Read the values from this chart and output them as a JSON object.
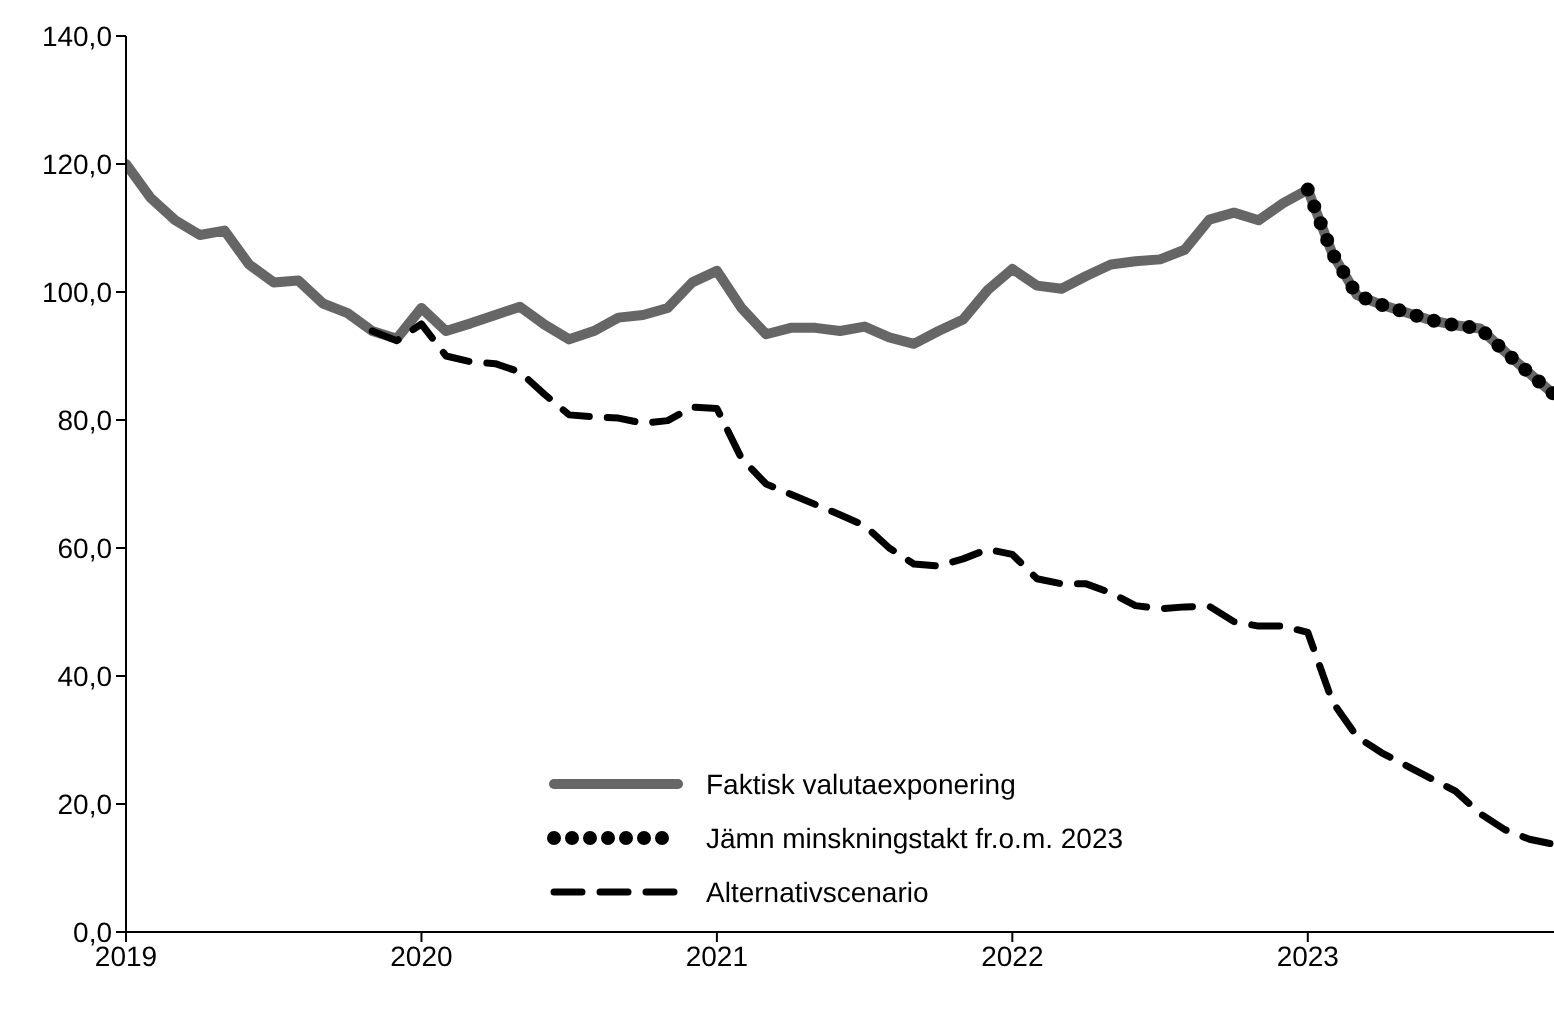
{
  "chart_data": {
    "type": "line",
    "xlim": [
      "2019-01",
      "2023-11"
    ],
    "xticks": [
      "2019",
      "2020",
      "2021",
      "2022",
      "2023"
    ],
    "ylim": [
      0,
      140
    ],
    "yticks": [
      {
        "value": 0,
        "label": "0,0"
      },
      {
        "value": 20,
        "label": "20,0"
      },
      {
        "value": 40,
        "label": "40,0"
      },
      {
        "value": 60,
        "label": "60,0"
      },
      {
        "value": 80,
        "label": "80,0"
      },
      {
        "value": 100,
        "label": "100,0"
      },
      {
        "value": 120,
        "label": "120,0"
      },
      {
        "value": 140,
        "label": "140,0"
      }
    ],
    "grid": false,
    "legend": "bottom",
    "marker": "none",
    "series": [
      {
        "name": "Faktisk valutaexponering",
        "color": "#666666",
        "line_style": "solid",
        "x": [
          "2019-01",
          "2019-02",
          "2019-03",
          "2019-04",
          "2019-05",
          "2019-06",
          "2019-07",
          "2019-08",
          "2019-09",
          "2019-10",
          "2019-11",
          "2019-12",
          "2020-01",
          "2020-02",
          "2020-03",
          "2020-04",
          "2020-05",
          "2020-06",
          "2020-07",
          "2020-08",
          "2020-09",
          "2020-10",
          "2020-11",
          "2020-12",
          "2021-01",
          "2021-02",
          "2021-03",
          "2021-04",
          "2021-05",
          "2021-06",
          "2021-07",
          "2021-08",
          "2021-09",
          "2021-10",
          "2021-11",
          "2021-12",
          "2022-01",
          "2022-02",
          "2022-03",
          "2022-04",
          "2022-05",
          "2022-06",
          "2022-07",
          "2022-08",
          "2022-09",
          "2022-10",
          "2022-11",
          "2022-12",
          "2023-01",
          "2023-02",
          "2023-03",
          "2023-04",
          "2023-05",
          "2023-06",
          "2023-07",
          "2023-08",
          "2023-09",
          "2023-10",
          "2023-11"
        ],
        "values": [
          120,
          114.7,
          111.2,
          108.9,
          109.6,
          104.3,
          101.5,
          101.8,
          98.2,
          96.7,
          93.9,
          92.7,
          97.5,
          93.9,
          95.1,
          96.4,
          97.7,
          94.9,
          92.6,
          93.9,
          96,
          96.4,
          97.5,
          101.5,
          103.3,
          97.5,
          93.4,
          94.4,
          94.4,
          93.9,
          94.6,
          92.9,
          91.9,
          93.9,
          95.7,
          100.3,
          103.6,
          101,
          100.5,
          102.5,
          104.3,
          104.8,
          105.1,
          106.6,
          111.3,
          112.4,
          111.2,
          113.9,
          116,
          106,
          99.5,
          98,
          96.8,
          95.6,
          94.8,
          94.3,
          90.7,
          87.3,
          84
        ]
      },
      {
        "name": "Jämn minskningstakt fr.o.m. 2023",
        "color": "#000000",
        "line_style": "dotted",
        "x": [
          "2023-01",
          "2023-02",
          "2023-03",
          "2023-04",
          "2023-05",
          "2023-06",
          "2023-07",
          "2023-08",
          "2023-09",
          "2023-10",
          "2023-11"
        ],
        "values": [
          116,
          106,
          99.5,
          98,
          96.8,
          95.6,
          94.8,
          94.3,
          90.7,
          87.3,
          84
        ]
      },
      {
        "name": "Alternativscenario",
        "color": "#000000",
        "line_style": "dashed",
        "x": [
          "2019-11",
          "2019-12",
          "2020-01",
          "2020-02",
          "2020-03",
          "2020-04",
          "2020-05",
          "2020-06",
          "2020-07",
          "2020-08",
          "2020-09",
          "2020-10",
          "2020-11",
          "2020-12",
          "2021-01",
          "2021-02",
          "2021-03",
          "2021-04",
          "2021-05",
          "2021-06",
          "2021-07",
          "2021-08",
          "2021-09",
          "2021-10",
          "2021-11",
          "2021-12",
          "2022-01",
          "2022-02",
          "2022-03",
          "2022-04",
          "2022-05",
          "2022-06",
          "2022-07",
          "2022-08",
          "2022-09",
          "2022-10",
          "2022-11",
          "2022-12",
          "2023-01",
          "2023-02",
          "2023-03",
          "2023-04",
          "2023-05",
          "2023-06",
          "2023-07",
          "2023-08",
          "2023-09",
          "2023-10",
          "2023-11"
        ],
        "values": [
          93.9,
          92.4,
          95,
          90,
          89.1,
          88.8,
          87.5,
          84,
          80.8,
          80.5,
          80.3,
          79.5,
          79.9,
          82,
          81.8,
          74,
          70,
          68.4,
          66.8,
          65.2,
          63.5,
          60,
          57.5,
          57.2,
          58.3,
          59.8,
          59,
          55.2,
          54.4,
          54.4,
          53,
          51,
          50.5,
          50.8,
          50.9,
          48.5,
          47.8,
          47.8,
          46.8,
          36,
          30.5,
          28,
          26,
          24,
          22,
          18.5,
          16,
          14.5,
          13.7
        ]
      }
    ]
  }
}
